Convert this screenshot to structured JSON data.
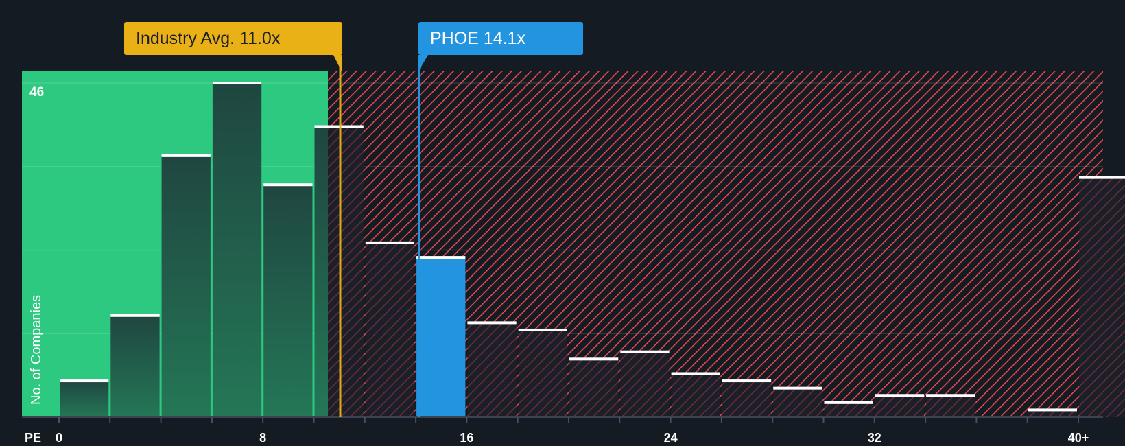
{
  "chart_data": {
    "type": "bar",
    "title": "",
    "xlabel": "PE",
    "ylabel": "No. of Companies",
    "x_tick_labels": [
      "0",
      "8",
      "16",
      "24",
      "32",
      "40+"
    ],
    "x_tick_positions": [
      0,
      8,
      16,
      24,
      32,
      40
    ],
    "bin_width": 2,
    "bins_start": [
      0,
      2,
      4,
      6,
      8,
      10,
      12,
      14,
      16,
      18,
      20,
      22,
      24,
      26,
      28,
      30,
      32,
      34,
      36,
      38,
      40
    ],
    "values": [
      5,
      14,
      36,
      46,
      32,
      40,
      24,
      22,
      13,
      12,
      8,
      9,
      6,
      5,
      4,
      2,
      3,
      3,
      0,
      1,
      33
    ],
    "y_max_label": "46",
    "ylim": [
      0,
      48
    ],
    "gridlines": [
      11.5,
      23,
      34.5,
      46
    ],
    "highlighted_bin_start": 14,
    "fair_region": {
      "from": 0,
      "to": 10.8,
      "color": "#2ec981"
    },
    "expensive_region": {
      "from": 10.8,
      "to": 42,
      "color": "#e5484d"
    },
    "annotations": [
      {
        "label": "Industry Avg. 11.0x",
        "value": 11.0,
        "color": "#eab117"
      },
      {
        "label": "PHOE 14.1x",
        "value": 14.1,
        "color": "#2394e0"
      }
    ],
    "grid": true,
    "legend": "none"
  },
  "labels": {
    "industry_avg": "Industry Avg. 11.0x",
    "company": "PHOE 14.1x",
    "y_axis_title": "No. of Companies",
    "y_max": "46",
    "x_axis_prefix": "PE",
    "ticks": [
      "0",
      "8",
      "16",
      "24",
      "32",
      "40+"
    ]
  },
  "colors": {
    "background": "#151b23",
    "green_zone": "#2ec981",
    "bar_in_green": "#1f4a40",
    "hatch_red": "#e5484d",
    "highlight_bar": "#2394e0",
    "industry": "#eab117"
  }
}
